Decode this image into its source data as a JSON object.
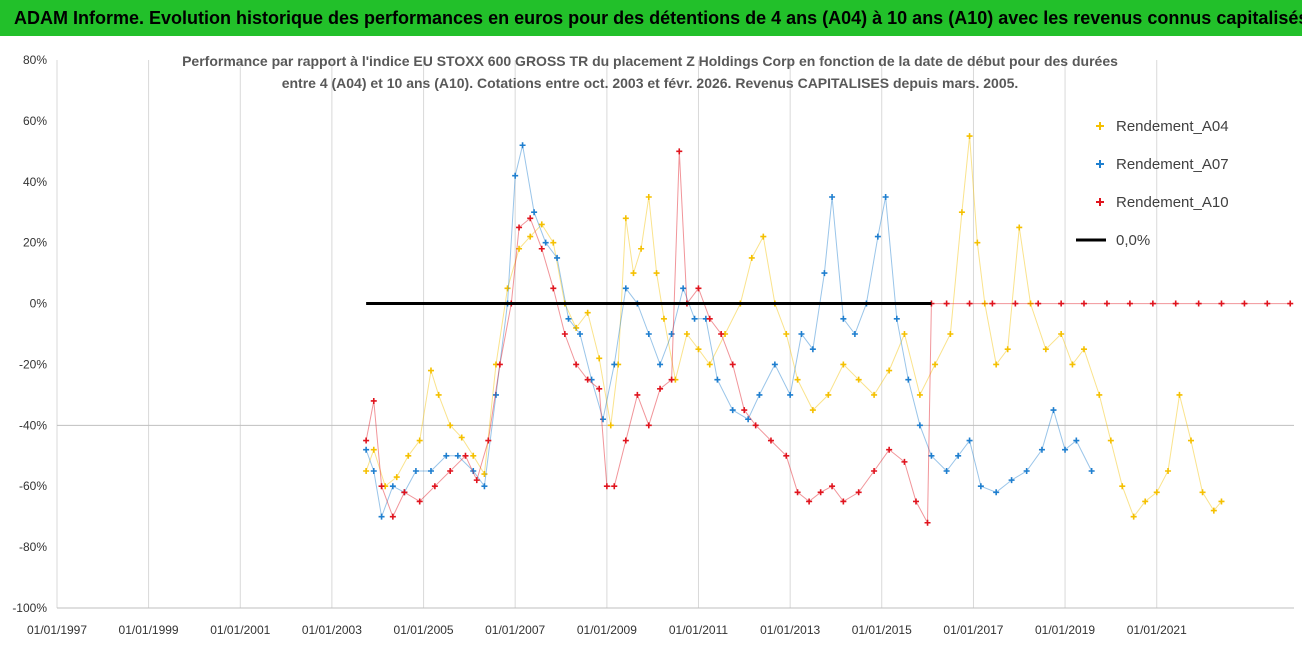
{
  "banner": {
    "title": "ADAM Informe. Evolution historique des performances en euros pour des détentions de 4 ans (A04) à 10 ans (A10) avec les revenus connus capitalisés"
  },
  "chart_data": {
    "type": "scatter",
    "title_lines": [
      "Performance par rapport à l'indice EU STOXX 600 GROSS TR  du placement Z Holdings Corp en fonction de la date de début pour des durées",
      "entre 4 (A04) et 10 ans (A10). Cotations entre oct. 2003 et févr. 2026. Revenus CAPITALISES depuis mars. 2005."
    ],
    "x_tick_labels": [
      "01/01/1997",
      "01/01/1999",
      "01/01/2001",
      "01/01/2003",
      "01/01/2005",
      "01/01/2007",
      "01/01/2009",
      "01/01/2011",
      "01/01/2013",
      "01/01/2015",
      "01/01/2017",
      "01/01/2019",
      "01/01/2021"
    ],
    "y_tick_labels": [
      "80%",
      "60%",
      "40%",
      "20%",
      "0%",
      "-20%",
      "-40%",
      "-60%",
      "-80%",
      "-100%"
    ],
    "y_ticks": [
      80,
      60,
      40,
      20,
      0,
      -20,
      -40,
      -60,
      -80,
      -100
    ],
    "xlim": [
      "1997-01-01",
      "2023-12-31"
    ],
    "ylim": [
      -100,
      80
    ],
    "grid": "vertical lines at yearly ticks, horizontal lines at -100% and -40%",
    "legend_position": "top-right",
    "series": [
      {
        "name": "Rendement_A04",
        "color": "#f5c000",
        "marker": "+",
        "points": [
          [
            "2003-10",
            -55
          ],
          [
            "2003-12",
            -48
          ],
          [
            "2004-03",
            -60
          ],
          [
            "2004-06",
            -57
          ],
          [
            "2004-09",
            -50
          ],
          [
            "2004-12",
            -45
          ],
          [
            "2005-03",
            -22
          ],
          [
            "2005-05",
            -30
          ],
          [
            "2005-08",
            -40
          ],
          [
            "2005-11",
            -44
          ],
          [
            "2006-02",
            -50
          ],
          [
            "2006-05",
            -56
          ],
          [
            "2006-08",
            -20
          ],
          [
            "2006-11",
            5
          ],
          [
            "2007-02",
            18
          ],
          [
            "2007-05",
            22
          ],
          [
            "2007-08",
            26
          ],
          [
            "2007-11",
            20
          ],
          [
            "2008-02",
            0
          ],
          [
            "2008-05",
            -8
          ],
          [
            "2008-08",
            -3
          ],
          [
            "2008-11",
            -18
          ],
          [
            "2009-02",
            -40
          ],
          [
            "2009-04",
            -20
          ],
          [
            "2009-06",
            28
          ],
          [
            "2009-08",
            10
          ],
          [
            "2009-10",
            18
          ],
          [
            "2009-12",
            35
          ],
          [
            "2010-02",
            10
          ],
          [
            "2010-04",
            -5
          ],
          [
            "2010-07",
            -25
          ],
          [
            "2010-10",
            -10
          ],
          [
            "2011-01",
            -15
          ],
          [
            "2011-04",
            -20
          ],
          [
            "2011-08",
            -10
          ],
          [
            "2011-12",
            0
          ],
          [
            "2012-03",
            15
          ],
          [
            "2012-06",
            22
          ],
          [
            "2012-09",
            0
          ],
          [
            "2012-12",
            -10
          ],
          [
            "2013-03",
            -25
          ],
          [
            "2013-07",
            -35
          ],
          [
            "2013-11",
            -30
          ],
          [
            "2014-03",
            -20
          ],
          [
            "2014-07",
            -25
          ],
          [
            "2014-11",
            -30
          ],
          [
            "2015-03",
            -22
          ],
          [
            "2015-07",
            -10
          ],
          [
            "2015-11",
            -30
          ],
          [
            "2016-03",
            -20
          ],
          [
            "2016-07",
            -10
          ],
          [
            "2016-10",
            30
          ],
          [
            "2016-12",
            55
          ],
          [
            "2017-02",
            20
          ],
          [
            "2017-04",
            0
          ],
          [
            "2017-07",
            -20
          ],
          [
            "2017-10",
            -15
          ],
          [
            "2018-01",
            25
          ],
          [
            "2018-04",
            0
          ],
          [
            "2018-08",
            -15
          ],
          [
            "2018-12",
            -10
          ],
          [
            "2019-03",
            -20
          ],
          [
            "2019-06",
            -15
          ],
          [
            "2019-10",
            -30
          ],
          [
            "2020-01",
            -45
          ],
          [
            "2020-04",
            -60
          ],
          [
            "2020-07",
            -70
          ],
          [
            "2020-10",
            -65
          ],
          [
            "2021-01",
            -62
          ],
          [
            "2021-04",
            -55
          ],
          [
            "2021-07",
            -30
          ],
          [
            "2021-10",
            -45
          ],
          [
            "2022-01",
            -62
          ],
          [
            "2022-04",
            -68
          ],
          [
            "2022-06",
            -65
          ]
        ]
      },
      {
        "name": "Rendement_A07",
        "color": "#1f7fcf",
        "marker": "+",
        "points": [
          [
            "2003-10",
            -48
          ],
          [
            "2003-12",
            -55
          ],
          [
            "2004-02",
            -70
          ],
          [
            "2004-05",
            -60
          ],
          [
            "2004-08",
            -62
          ],
          [
            "2004-11",
            -55
          ],
          [
            "2005-03",
            -55
          ],
          [
            "2005-07",
            -50
          ],
          [
            "2005-10",
            -50
          ],
          [
            "2006-02",
            -55
          ],
          [
            "2006-05",
            -60
          ],
          [
            "2006-08",
            -30
          ],
          [
            "2006-11",
            0
          ],
          [
            "2007-01",
            42
          ],
          [
            "2007-03",
            52
          ],
          [
            "2007-06",
            30
          ],
          [
            "2007-09",
            20
          ],
          [
            "2007-12",
            15
          ],
          [
            "2008-03",
            -5
          ],
          [
            "2008-06",
            -10
          ],
          [
            "2008-09",
            -25
          ],
          [
            "2008-12",
            -38
          ],
          [
            "2009-03",
            -20
          ],
          [
            "2009-06",
            5
          ],
          [
            "2009-09",
            0
          ],
          [
            "2009-12",
            -10
          ],
          [
            "2010-03",
            -20
          ],
          [
            "2010-06",
            -10
          ],
          [
            "2010-09",
            5
          ],
          [
            "2010-12",
            -5
          ],
          [
            "2011-03",
            -5
          ],
          [
            "2011-06",
            -25
          ],
          [
            "2011-10",
            -35
          ],
          [
            "2012-02",
            -38
          ],
          [
            "2012-05",
            -30
          ],
          [
            "2012-09",
            -20
          ],
          [
            "2013-01",
            -30
          ],
          [
            "2013-04",
            -10
          ],
          [
            "2013-07",
            -15
          ],
          [
            "2013-10",
            10
          ],
          [
            "2013-12",
            35
          ],
          [
            "2014-03",
            -5
          ],
          [
            "2014-06",
            -10
          ],
          [
            "2014-09",
            0
          ],
          [
            "2014-12",
            22
          ],
          [
            "2015-02",
            35
          ],
          [
            "2015-05",
            -5
          ],
          [
            "2015-08",
            -25
          ],
          [
            "2015-11",
            -40
          ],
          [
            "2016-02",
            -50
          ],
          [
            "2016-06",
            -55
          ],
          [
            "2016-09",
            -50
          ],
          [
            "2016-12",
            -45
          ],
          [
            "2017-03",
            -60
          ],
          [
            "2017-07",
            -62
          ],
          [
            "2017-11",
            -58
          ],
          [
            "2018-03",
            -55
          ],
          [
            "2018-07",
            -48
          ],
          [
            "2018-10",
            -35
          ],
          [
            "2019-01",
            -48
          ],
          [
            "2019-04",
            -45
          ],
          [
            "2019-08",
            -55
          ]
        ]
      },
      {
        "name": "Rendement_A10",
        "color": "#e0141e",
        "marker": "+",
        "points": [
          [
            "2003-10",
            -45
          ],
          [
            "2003-12",
            -32
          ],
          [
            "2004-02",
            -60
          ],
          [
            "2004-05",
            -70
          ],
          [
            "2004-08",
            -62
          ],
          [
            "2004-12",
            -65
          ],
          [
            "2005-04",
            -60
          ],
          [
            "2005-08",
            -55
          ],
          [
            "2005-12",
            -50
          ],
          [
            "2006-03",
            -58
          ],
          [
            "2006-06",
            -45
          ],
          [
            "2006-09",
            -20
          ],
          [
            "2006-12",
            0
          ],
          [
            "2007-02",
            25
          ],
          [
            "2007-05",
            28
          ],
          [
            "2007-08",
            18
          ],
          [
            "2007-11",
            5
          ],
          [
            "2008-02",
            -10
          ],
          [
            "2008-05",
            -20
          ],
          [
            "2008-08",
            -25
          ],
          [
            "2008-11",
            -28
          ],
          [
            "2009-01",
            -60
          ],
          [
            "2009-03",
            -60
          ],
          [
            "2009-06",
            -45
          ],
          [
            "2009-09",
            -30
          ],
          [
            "2009-12",
            -40
          ],
          [
            "2010-03",
            -28
          ],
          [
            "2010-06",
            -25
          ],
          [
            "2010-08",
            50
          ],
          [
            "2010-10",
            0
          ],
          [
            "2011-01",
            5
          ],
          [
            "2011-04",
            -5
          ],
          [
            "2011-07",
            -10
          ],
          [
            "2011-10",
            -20
          ],
          [
            "2012-01",
            -35
          ],
          [
            "2012-04",
            -40
          ],
          [
            "2012-08",
            -45
          ],
          [
            "2012-12",
            -50
          ],
          [
            "2013-03",
            -62
          ],
          [
            "2013-06",
            -65
          ],
          [
            "2013-09",
            -62
          ],
          [
            "2013-12",
            -60
          ],
          [
            "2014-03",
            -65
          ],
          [
            "2014-07",
            -62
          ],
          [
            "2014-11",
            -55
          ],
          [
            "2015-03",
            -48
          ],
          [
            "2015-07",
            -52
          ],
          [
            "2015-10",
            -65
          ],
          [
            "2016-01",
            -72
          ],
          [
            "2016-02",
            0
          ],
          [
            "2016-06",
            0
          ],
          [
            "2016-12",
            0
          ],
          [
            "2017-06",
            0
          ],
          [
            "2017-12",
            0
          ],
          [
            "2018-06",
            0
          ],
          [
            "2018-12",
            0
          ],
          [
            "2019-06",
            0
          ],
          [
            "2019-12",
            0
          ],
          [
            "2020-06",
            0
          ],
          [
            "2020-12",
            0
          ],
          [
            "2021-06",
            0
          ],
          [
            "2021-12",
            0
          ],
          [
            "2022-06",
            0
          ],
          [
            "2022-12",
            0
          ],
          [
            "2023-06",
            0
          ],
          [
            "2023-12",
            0
          ]
        ]
      },
      {
        "name": "0,0%",
        "color": "#000000",
        "type": "line",
        "points": [
          [
            "2003-10",
            0
          ],
          [
            "2016-02",
            0
          ]
        ]
      }
    ]
  }
}
